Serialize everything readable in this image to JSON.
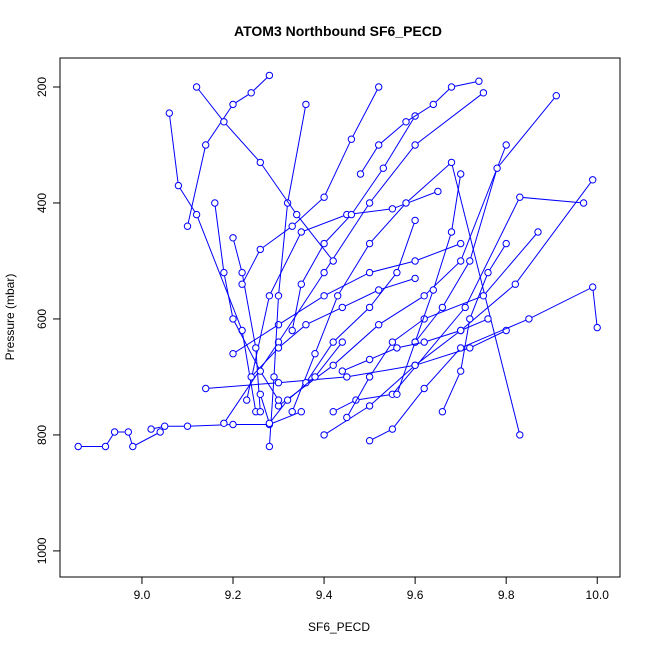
{
  "chart_data": {
    "type": "line",
    "title": "ATOM3 Northbound SF6_PECD",
    "xlabel": "SF6_PECD",
    "ylabel": "Pressure (mbar)",
    "xlim": [
      8.82,
      10.05
    ],
    "ylim": [
      1045,
      150
    ],
    "y_inverted": true,
    "x_ticks": [
      9.0,
      9.2,
      9.4,
      9.6,
      9.8,
      10.0
    ],
    "x_tick_labels": [
      "9.0",
      "9.2",
      "9.4",
      "9.6",
      "9.8",
      "10.0"
    ],
    "y_ticks": [
      200,
      400,
      600,
      800,
      1000
    ],
    "y_tick_labels": [
      "200",
      "400",
      "600",
      "800",
      "1000"
    ],
    "marker": "open-circle",
    "colors": {
      "series": "#0000ff",
      "axis": "#000000"
    },
    "series": [
      {
        "x": [
          8.86,
          8.92,
          8.94,
          8.97,
          8.98,
          9.04
        ],
        "y": [
          820,
          820,
          795,
          795,
          820,
          795
        ]
      },
      {
        "x": [
          9.02,
          9.05,
          9.1,
          9.2,
          9.28,
          9.35
        ],
        "y": [
          790,
          785,
          785,
          782,
          782,
          760
        ]
      },
      {
        "x": [
          9.25,
          9.22,
          9.12,
          9.08,
          9.06
        ],
        "y": [
          760,
          620,
          420,
          370,
          245
        ]
      },
      {
        "x": [
          9.42,
          9.47,
          9.55,
          9.71,
          9.83,
          9.97
        ],
        "y": [
          760,
          740,
          730,
          580,
          390,
          400
        ]
      },
      {
        "x": [
          9.14,
          9.3,
          9.45,
          9.6,
          9.72,
          9.8
        ],
        "y": [
          720,
          710,
          700,
          680,
          650,
          620
        ]
      },
      {
        "x": [
          9.2,
          9.3,
          9.4,
          9.5,
          9.6,
          9.7
        ],
        "y": [
          660,
          610,
          560,
          520,
          500,
          470
        ]
      },
      {
        "x": [
          9.23,
          9.28,
          9.35,
          9.45,
          9.55,
          9.65
        ],
        "y": [
          740,
          560,
          450,
          420,
          410,
          380
        ]
      },
      {
        "x": [
          9.3,
          9.42,
          9.52,
          9.62,
          9.7,
          9.8
        ],
        "y": [
          750,
          680,
          610,
          560,
          500,
          300
        ]
      },
      {
        "x": [
          9.26,
          9.25,
          9.22,
          9.2
        ],
        "y": [
          760,
          650,
          520,
          460
        ]
      },
      {
        "x": [
          9.18,
          9.3,
          9.4,
          9.5,
          9.6,
          9.75
        ],
        "y": [
          780,
          640,
          520,
          400,
          300,
          210
        ]
      },
      {
        "x": [
          9.5,
          9.55,
          9.62,
          9.7,
          9.85,
          9.99,
          10.0
        ],
        "y": [
          810,
          790,
          720,
          650,
          600,
          545,
          615
        ]
      },
      {
        "x": [
          9.4,
          9.5,
          9.6,
          9.7,
          9.82,
          9.99
        ],
        "y": [
          800,
          750,
          680,
          620,
          540,
          360
        ]
      },
      {
        "x": [
          9.33,
          9.38,
          9.43,
          9.5,
          9.58,
          9.68,
          9.83
        ],
        "y": [
          760,
          660,
          560,
          470,
          400,
          330,
          800
        ]
      },
      {
        "x": [
          9.28,
          9.29,
          9.3,
          9.32,
          9.36
        ],
        "y": [
          820,
          700,
          560,
          400,
          230
        ]
      },
      {
        "x": [
          9.45,
          9.5,
          9.55,
          9.62,
          9.75,
          9.87
        ],
        "y": [
          770,
          700,
          640,
          600,
          560,
          450
        ]
      },
      {
        "x": [
          9.56,
          9.6,
          9.66,
          9.72,
          9.78,
          9.91
        ],
        "y": [
          730,
          640,
          580,
          500,
          340,
          215
        ]
      },
      {
        "x": [
          9.16,
          9.18,
          9.2,
          9.26,
          9.3
        ],
        "y": [
          400,
          520,
          600,
          690,
          740
        ]
      },
      {
        "x": [
          9.33,
          9.35,
          9.4,
          9.46,
          9.53,
          9.6
        ],
        "y": [
          620,
          540,
          470,
          420,
          340,
          250
        ]
      },
      {
        "x": [
          9.22,
          9.26,
          9.33,
          9.4,
          9.46,
          9.52
        ],
        "y": [
          540,
          480,
          440,
          390,
          290,
          200
        ]
      },
      {
        "x": [
          9.36,
          9.42,
          9.5,
          9.56,
          9.6
        ],
        "y": [
          710,
          640,
          580,
          520,
          430
        ]
      },
      {
        "x": [
          9.1,
          9.14,
          9.2,
          9.24,
          9.28
        ],
        "y": [
          440,
          300,
          230,
          210,
          180
        ]
      },
      {
        "x": [
          9.12,
          9.18,
          9.26,
          9.34,
          9.42
        ],
        "y": [
          200,
          260,
          330,
          420,
          500
        ]
      },
      {
        "x": [
          9.48,
          9.52,
          9.58,
          9.64,
          9.68,
          9.74
        ],
        "y": [
          350,
          300,
          260,
          230,
          200,
          190
        ]
      },
      {
        "x": [
          9.66,
          9.7,
          9.72,
          9.76,
          9.8
        ],
        "y": [
          760,
          690,
          600,
          520,
          470
        ]
      },
      {
        "x": [
          9.6,
          9.64,
          9.68,
          9.7
        ],
        "y": [
          640,
          550,
          450,
          350
        ]
      },
      {
        "x": [
          9.24,
          9.3,
          9.36,
          9.44,
          9.52,
          9.6
        ],
        "y": [
          700,
          650,
          610,
          580,
          550,
          530
        ]
      },
      {
        "x": [
          9.44,
          9.5,
          9.56,
          9.62,
          9.7,
          9.76
        ],
        "y": [
          690,
          670,
          650,
          640,
          620,
          600
        ]
      },
      {
        "x": [
          9.26,
          9.28,
          9.32,
          9.38,
          9.44
        ],
        "y": [
          730,
          780,
          740,
          700,
          640
        ]
      }
    ]
  }
}
